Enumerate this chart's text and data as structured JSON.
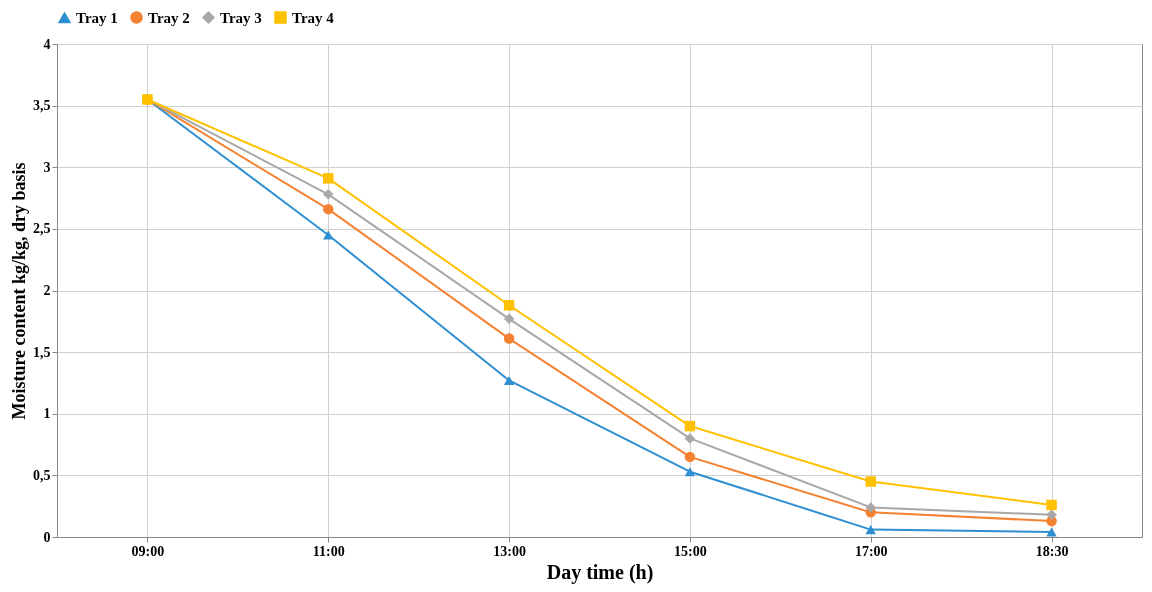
{
  "chart_data": {
    "type": "line",
    "xlabel": "Day time (h)",
    "ylabel": "Moisture content kg/kg, dry basis",
    "categories": [
      "09:00",
      "11:00",
      "13:00",
      "15:00",
      "17:00",
      "18:30"
    ],
    "series": [
      {
        "name": "Tray 1",
        "color": "#2e8fd1",
        "marker": "triangle",
        "values": [
          3.55,
          2.45,
          1.27,
          0.53,
          0.06,
          0.04
        ]
      },
      {
        "name": "Tray 2",
        "color": "#f58232",
        "marker": "circle",
        "values": [
          3.55,
          2.66,
          1.61,
          0.65,
          0.2,
          0.13
        ]
      },
      {
        "name": "Tray 3",
        "color": "#a8a8a8",
        "marker": "diamond",
        "values": [
          3.55,
          2.78,
          1.77,
          0.8,
          0.24,
          0.18
        ]
      },
      {
        "name": "Tray 4",
        "color": "#ffc000",
        "marker": "square",
        "values": [
          3.55,
          2.91,
          1.88,
          0.9,
          0.45,
          0.26
        ]
      }
    ],
    "ylim": [
      0,
      4
    ],
    "yticks": [
      0,
      {
        "value": 0.5,
        "label": "0,5"
      },
      1,
      {
        "value": 1.5,
        "label": "1,5"
      },
      2,
      {
        "value": 2.5,
        "label": "2,5"
      },
      3,
      {
        "value": 3.5,
        "label": "3,5"
      },
      4
    ],
    "grid": true,
    "legend": "top",
    "line_style": "solid"
  }
}
